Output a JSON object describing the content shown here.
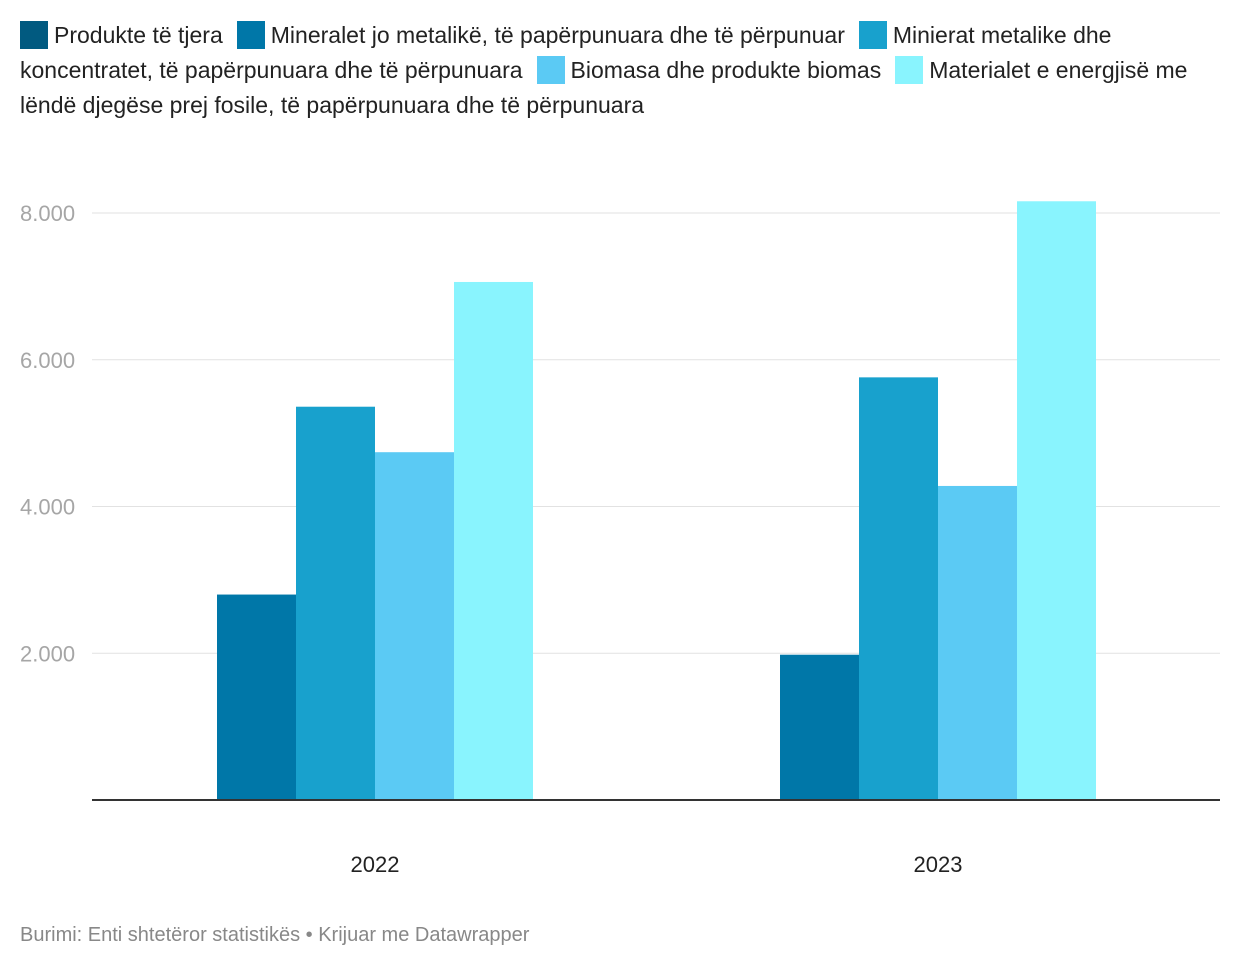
{
  "chart_data": {
    "type": "bar",
    "categories": [
      "2022",
      "2023"
    ],
    "series": [
      {
        "name": "Produkte të tjera",
        "color": "#015a80",
        "values": [
          null,
          null
        ]
      },
      {
        "name": "Mineralet jo metalikë, të papërpunuara dhe të përpunuar",
        "color": "#0077a8",
        "values": [
          2800,
          1980
        ]
      },
      {
        "name": "Minierat metalike dhe koncentratet, të papërpunuara dhe të përpunuara",
        "color": "#18a1cd",
        "values": [
          5360,
          5760
        ]
      },
      {
        "name": "Biomasa dhe produkte biomas",
        "color": "#5bcaf4",
        "values": [
          4740,
          4280
        ]
      },
      {
        "name": "Materialet e energjisë me lëndë djegëse prej fosile, të papërpunuara dhe të përpunuara",
        "color": "#89f4fe",
        "values": [
          7060,
          8160
        ]
      }
    ],
    "yticks": [
      2000,
      4000,
      6000,
      8000
    ],
    "ytick_labels": [
      "2.000",
      "4.000",
      "6.000",
      "8.000"
    ],
    "ylim": [
      0,
      8300
    ],
    "grid": true,
    "legend_position": "top"
  },
  "footer": {
    "source": "Burimi: Enti shtetëror statistikës • Krijuar me Datawrapper"
  }
}
